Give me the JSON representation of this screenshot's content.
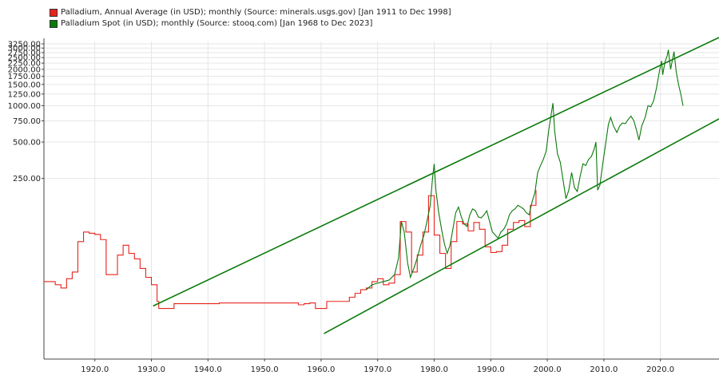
{
  "chart_data": {
    "type": "line",
    "legend": {
      "placement": "top-left",
      "entries": [
        {
          "label": "Palladium, Annual Average (in USD); monthly (Source: minerals.usgs.gov) [Jan 1911 to Dec 1998]",
          "color": "#e8231c"
        },
        {
          "label": "Palladium Spot (in USD); monthly (Source: stooq.com) [Jan 1968 to Dec 2023]",
          "color": "#0a7a0a"
        }
      ]
    },
    "y_scale": "log",
    "y_ticks": [
      {
        "value": 250,
        "label": "250.00"
      },
      {
        "value": 500,
        "label": "500.00"
      },
      {
        "value": 750,
        "label": "750.00"
      },
      {
        "value": 1000,
        "label": "1000.00"
      },
      {
        "value": 1250,
        "label": "1250.00"
      },
      {
        "value": 1500,
        "label": "1500.00"
      },
      {
        "value": 1750,
        "label": "1750.00"
      },
      {
        "value": 2000,
        "label": "2000.00"
      },
      {
        "value": 2250,
        "label": "2250.00"
      },
      {
        "value": 2500,
        "label": "2500.00"
      },
      {
        "value": 2750,
        "label": "2750.00"
      },
      {
        "value": 3000,
        "label": "3000.00"
      },
      {
        "value": 3250,
        "label": "3250.00"
      }
    ],
    "x_ticks": [
      {
        "value": 1920,
        "label": "1920.0"
      },
      {
        "value": 1930,
        "label": "1930.0"
      },
      {
        "value": 1940,
        "label": "1940.0"
      },
      {
        "value": 1950,
        "label": "1950.0"
      },
      {
        "value": 1960,
        "label": "1960.0"
      },
      {
        "value": 1970,
        "label": "1970.0"
      },
      {
        "value": 1980,
        "label": "1980.0"
      },
      {
        "value": 1990,
        "label": "1990.0"
      },
      {
        "value": 2000,
        "label": "2000.0"
      },
      {
        "value": 2010,
        "label": "2010.0"
      },
      {
        "value": 2020,
        "label": "2020.0"
      }
    ],
    "xlim": [
      1911,
      2024
    ],
    "ylim": [
      8,
      3400
    ],
    "grid": true,
    "series": [
      {
        "name": "Palladium, Annual Average (in USD); monthly (Source: minerals.usgs.gov) [Jan 1911 to Dec 1998]",
        "color": "#e8231c",
        "step": true,
        "points": [
          [
            1911,
            35
          ],
          [
            1913,
            33
          ],
          [
            1914,
            31
          ],
          [
            1915,
            37
          ],
          [
            1916,
            42
          ],
          [
            1917,
            75
          ],
          [
            1918,
            90
          ],
          [
            1919,
            88
          ],
          [
            1920,
            86
          ],
          [
            1921,
            78
          ],
          [
            1922,
            40
          ],
          [
            1924,
            58
          ],
          [
            1925,
            70
          ],
          [
            1926,
            60
          ],
          [
            1927,
            54
          ],
          [
            1928,
            45
          ],
          [
            1929,
            38
          ],
          [
            1930,
            33
          ],
          [
            1931,
            24
          ],
          [
            1931.3,
            21
          ],
          [
            1934,
            23
          ],
          [
            1942,
            23.3
          ],
          [
            1955,
            23.3
          ],
          [
            1956,
            22.5
          ],
          [
            1957,
            23
          ],
          [
            1958,
            23.3
          ],
          [
            1959,
            21
          ],
          [
            1961,
            24
          ],
          [
            1964,
            24
          ],
          [
            1965,
            26
          ],
          [
            1966,
            28
          ],
          [
            1967,
            30
          ],
          [
            1968,
            31
          ],
          [
            1969,
            35
          ],
          [
            1970,
            37
          ],
          [
            1971,
            33
          ],
          [
            1972,
            34
          ],
          [
            1973,
            40
          ],
          [
            1974,
            110
          ],
          [
            1975,
            90
          ],
          [
            1976,
            42
          ],
          [
            1977,
            58
          ],
          [
            1978,
            90
          ],
          [
            1979,
            180
          ],
          [
            1980,
            85
          ],
          [
            1981,
            60
          ],
          [
            1982,
            45
          ],
          [
            1983,
            75
          ],
          [
            1984,
            110
          ],
          [
            1985,
            105
          ],
          [
            1986,
            92
          ],
          [
            1987,
            108
          ],
          [
            1988,
            95
          ],
          [
            1989,
            68
          ],
          [
            1990,
            61
          ],
          [
            1991,
            62
          ],
          [
            1992,
            70
          ],
          [
            1993,
            95
          ],
          [
            1994,
            108
          ],
          [
            1995,
            112
          ],
          [
            1996,
            100
          ],
          [
            1997,
            150
          ],
          [
            1998,
            200
          ]
        ]
      },
      {
        "name": "Palladium Spot (in USD); monthly (Source: stooq.com) [Jan 1968 to Dec 2023]",
        "color": "#0a7a0a",
        "points": [
          [
            1968,
            30
          ],
          [
            1969,
            33
          ],
          [
            1970,
            34
          ],
          [
            1971,
            35
          ],
          [
            1972,
            36
          ],
          [
            1973,
            40
          ],
          [
            1973.7,
            55
          ],
          [
            1974.2,
            110
          ],
          [
            1974.7,
            90
          ],
          [
            1975.3,
            50
          ],
          [
            1975.8,
            38
          ],
          [
            1976.4,
            45
          ],
          [
            1977,
            55
          ],
          [
            1977.6,
            70
          ],
          [
            1978.2,
            85
          ],
          [
            1978.8,
            115
          ],
          [
            1979.3,
            150
          ],
          [
            1979.7,
            250
          ],
          [
            1980,
            330
          ],
          [
            1980.3,
            200
          ],
          [
            1980.8,
            130
          ],
          [
            1981.3,
            95
          ],
          [
            1981.8,
            72
          ],
          [
            1982.3,
            60
          ],
          [
            1982.8,
            70
          ],
          [
            1983.3,
            95
          ],
          [
            1983.8,
            130
          ],
          [
            1984.3,
            145
          ],
          [
            1984.8,
            120
          ],
          [
            1985.3,
            105
          ],
          [
            1985.8,
            100
          ],
          [
            1986.3,
            125
          ],
          [
            1986.8,
            140
          ],
          [
            1987.3,
            135
          ],
          [
            1987.8,
            120
          ],
          [
            1988.3,
            118
          ],
          [
            1988.8,
            125
          ],
          [
            1989.3,
            135
          ],
          [
            1989.8,
            110
          ],
          [
            1990.3,
            90
          ],
          [
            1990.8,
            85
          ],
          [
            1991.3,
            80
          ],
          [
            1991.8,
            90
          ],
          [
            1992.3,
            95
          ],
          [
            1992.8,
            105
          ],
          [
            1993.3,
            125
          ],
          [
            1993.8,
            135
          ],
          [
            1994.3,
            140
          ],
          [
            1994.8,
            150
          ],
          [
            1995.3,
            145
          ],
          [
            1995.8,
            140
          ],
          [
            1996.3,
            130
          ],
          [
            1996.8,
            125
          ],
          [
            1997.3,
            160
          ],
          [
            1997.8,
            190
          ],
          [
            1998.3,
            280
          ],
          [
            1998.8,
            320
          ],
          [
            1999.3,
            360
          ],
          [
            1999.8,
            420
          ],
          [
            2000.3,
            650
          ],
          [
            2000.6,
            800
          ],
          [
            2001,
            1050
          ],
          [
            2001.3,
            620
          ],
          [
            2001.8,
            400
          ],
          [
            2002.3,
            340
          ],
          [
            2002.8,
            240
          ],
          [
            2003.3,
            170
          ],
          [
            2003.8,
            200
          ],
          [
            2004.3,
            280
          ],
          [
            2004.8,
            210
          ],
          [
            2005.3,
            195
          ],
          [
            2005.8,
            260
          ],
          [
            2006.3,
            330
          ],
          [
            2006.8,
            320
          ],
          [
            2007.3,
            360
          ],
          [
            2007.8,
            380
          ],
          [
            2008.3,
            440
          ],
          [
            2008.6,
            500
          ],
          [
            2008.9,
            200
          ],
          [
            2009.3,
            220
          ],
          [
            2009.8,
            330
          ],
          [
            2010.3,
            480
          ],
          [
            2010.8,
            700
          ],
          [
            2011.2,
            800
          ],
          [
            2011.7,
            680
          ],
          [
            2012.3,
            600
          ],
          [
            2012.8,
            680
          ],
          [
            2013.3,
            720
          ],
          [
            2013.8,
            710
          ],
          [
            2014.3,
            770
          ],
          [
            2014.8,
            820
          ],
          [
            2015.3,
            750
          ],
          [
            2015.8,
            620
          ],
          [
            2016.2,
            520
          ],
          [
            2016.7,
            680
          ],
          [
            2017.3,
            800
          ],
          [
            2017.8,
            1000
          ],
          [
            2018.3,
            980
          ],
          [
            2018.8,
            1100
          ],
          [
            2019.3,
            1400
          ],
          [
            2019.8,
            1900
          ],
          [
            2020.2,
            2350
          ],
          [
            2020.4,
            1800
          ],
          [
            2020.8,
            2300
          ],
          [
            2021.2,
            2600
          ],
          [
            2021.4,
            2900
          ],
          [
            2021.8,
            2000
          ],
          [
            2022.2,
            2500
          ],
          [
            2022.4,
            2800
          ],
          [
            2022.8,
            1900
          ],
          [
            2023.2,
            1500
          ],
          [
            2023.6,
            1250
          ],
          [
            2024,
            1000
          ]
        ]
      }
    ],
    "trend_lines": [
      {
        "color": "#0a7a0a",
        "from": [
          1930.3,
          22
        ],
        "to": [
          2024,
          3300
        ]
      },
      {
        "color": "#0a7a0a",
        "from": [
          1960.5,
          13
        ],
        "to": [
          2024,
          700
        ]
      }
    ]
  }
}
